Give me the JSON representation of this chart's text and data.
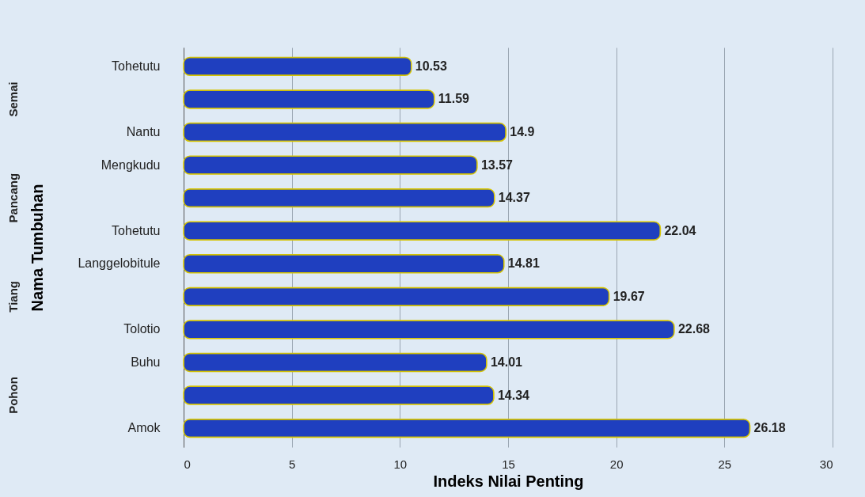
{
  "chart_data": {
    "type": "bar",
    "orientation": "horizontal",
    "xlabel": "Indeks Nilai Penting",
    "ylabel": "Nama Tumbuhan",
    "categories": [
      "Tohetutu",
      null,
      "Nantu",
      "Mengkudu",
      null,
      "Tohetutu",
      "Langgelobitule",
      null,
      "Tolotio",
      "Buhu",
      null,
      "Amok"
    ],
    "values": [
      10.53,
      11.59,
      14.9,
      13.57,
      14.37,
      22.04,
      14.81,
      19.67,
      22.68,
      14.01,
      14.34,
      26.18
    ],
    "color": "#1f3fbf",
    "xlim": [
      0,
      30
    ],
    "xticks": [
      0,
      5,
      10,
      15,
      20,
      25,
      30
    ],
    "grid": "x",
    "data_labels": true,
    "annotations": [
      "Semai",
      "Pancang",
      "Tiang",
      "Pohon"
    ]
  }
}
